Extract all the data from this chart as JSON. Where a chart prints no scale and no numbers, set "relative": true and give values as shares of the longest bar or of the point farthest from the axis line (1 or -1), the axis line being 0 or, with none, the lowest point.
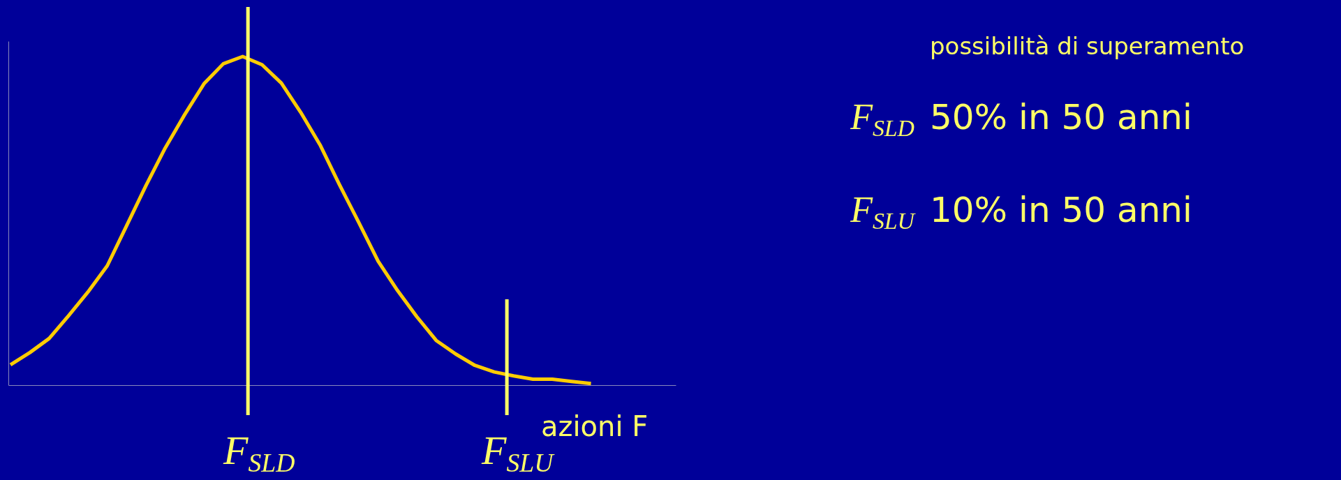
{
  "chart_data": {
    "type": "line",
    "relative": true,
    "xlabel": "azioni F",
    "categories": [
      null,
      null,
      null,
      null,
      null,
      null,
      null,
      null,
      null,
      null,
      null,
      null,
      null,
      null,
      null,
      null,
      null,
      null,
      null,
      null,
      null,
      null,
      null,
      null,
      null,
      null,
      null,
      null,
      null,
      null,
      null
    ],
    "series": [
      {
        "color": "#ffcc00",
        "values": [
          0.062,
          0.099,
          0.142,
          0.211,
          0.283,
          0.363,
          0.485,
          0.607,
          0.722,
          0.823,
          0.917,
          0.978,
          1,
          0.975,
          0.919,
          0.83,
          0.731,
          0.61,
          0.495,
          0.377,
          0.288,
          0.208,
          0.136,
          0.095,
          0.06,
          0.04,
          0.028,
          0.018,
          0.018,
          0.011,
          0.005
        ]
      }
    ],
    "annotations": [
      "F$_{SLD}$",
      "F$_{SLU}$",
      "possibilità di superamento",
      "F$_{SLD}$",
      "50% in 50 anni",
      "F$_{SLU}$",
      "10% in 50 anni"
    ]
  }
}
